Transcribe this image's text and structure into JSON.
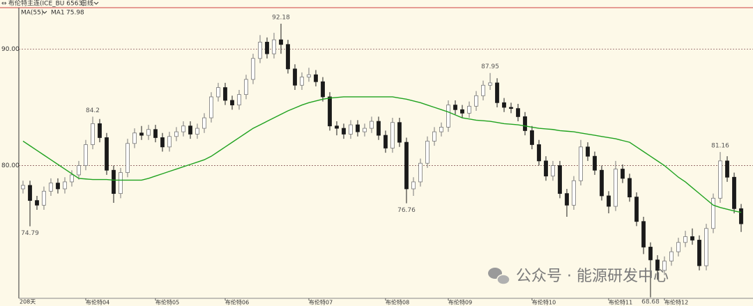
{
  "chart_data": {
    "type": "candlestick",
    "title": "布伦特主连(ICE_BU 6563)",
    "timeframe": "日线",
    "indicator": "MA(55)",
    "count_label": "208天",
    "watermark": "公众号 · 能源研发中心",
    "categories": [
      null,
      null,
      null,
      null,
      null,
      null,
      null,
      null,
      null,
      "布伦特04",
      null,
      null,
      null,
      null,
      null,
      null,
      null,
      null,
      null,
      "布伦特05",
      null,
      null,
      null,
      null,
      null,
      null,
      null,
      null,
      null,
      "布伦特06",
      null,
      null,
      null,
      null,
      null,
      null,
      null,
      null,
      null,
      null,
      null,
      "布伦特07",
      null,
      null,
      null,
      null,
      null,
      null,
      null,
      null,
      null,
      null,
      "布伦特08",
      null,
      null,
      null,
      null,
      null,
      null,
      null,
      null,
      "布伦特09",
      null,
      null,
      null,
      null,
      null,
      null,
      null,
      null,
      null,
      null,
      null,
      "布伦特10",
      null,
      null,
      null,
      null,
      null,
      null,
      null,
      null,
      null,
      null,
      "布伦特11",
      null,
      null,
      null,
      null,
      null,
      null,
      null,
      "布伦特12",
      null,
      null,
      null,
      null,
      null,
      null,
      null,
      null,
      null,
      null,
      null
    ],
    "open": [
      78.0,
      78.3,
      77.0,
      76.6,
      77.8,
      78.5,
      78.0,
      78.6,
      79.2,
      80.0,
      81.8,
      83.6,
      82.4,
      79.6,
      77.6,
      79.4,
      81.9,
      82.8,
      82.6,
      83.1,
      82.4,
      81.6,
      82.5,
      82.9,
      83.4,
      82.7,
      83.2,
      84.1,
      85.9,
      86.7,
      85.6,
      85.2,
      86.1,
      87.4,
      89.2,
      90.6,
      89.6,
      90.8,
      90.4,
      88.3,
      86.9,
      87.6,
      87.8,
      87.2,
      85.9,
      83.4,
      83.2,
      82.7,
      83.5,
      82.9,
      83.2,
      83.8,
      82.6,
      81.5,
      83.7,
      82.0,
      78.0,
      78.6,
      80.2,
      82.1,
      82.9,
      83.3,
      85.2,
      84.8,
      84.5,
      85.1,
      86.0,
      86.9,
      87.1,
      85.4,
      85.0,
      84.9,
      84.2,
      83.0,
      81.8,
      80.4,
      79.1,
      80.0,
      77.6,
      76.6,
      78.7,
      81.6,
      80.8,
      79.6,
      77.4,
      76.5,
      79.7,
      78.9,
      77.3,
      75.2,
      73.0,
      71.9,
      71.0,
      71.8,
      72.6,
      73.4,
      73.9,
      73.6,
      71.4,
      74.6,
      77.2,
      80.4,
      79.0,
      76.3
    ],
    "high": [
      78.7,
      78.7,
      77.4,
      78.2,
      78.9,
      78.9,
      79.0,
      79.6,
      80.4,
      82.2,
      84.2,
      84.0,
      82.8,
      80.0,
      79.8,
      82.3,
      83.2,
      83.4,
      83.5,
      83.5,
      82.8,
      82.9,
      83.3,
      83.8,
      83.8,
      83.6,
      84.5,
      86.3,
      87.1,
      87.1,
      86.0,
      86.5,
      87.8,
      89.6,
      91.2,
      91.0,
      91.4,
      92.18,
      90.8,
      88.7,
      88.0,
      88.4,
      88.2,
      87.6,
      86.3,
      83.8,
      83.6,
      83.9,
      83.9,
      83.6,
      84.2,
      84.2,
      83.0,
      84.1,
      84.1,
      82.4,
      79.0,
      80.6,
      82.5,
      83.3,
      83.7,
      85.6,
      85.6,
      85.2,
      85.5,
      86.4,
      87.3,
      87.95,
      87.5,
      85.8,
      85.4,
      85.3,
      84.6,
      83.4,
      82.2,
      80.8,
      80.4,
      80.4,
      78.0,
      79.1,
      82.2,
      82.0,
      81.2,
      80.0,
      77.8,
      80.4,
      80.1,
      79.3,
      77.7,
      75.6,
      73.4,
      72.3,
      72.2,
      73.0,
      73.8,
      74.4,
      74.6,
      74.0,
      75.0,
      77.6,
      81.16,
      80.8,
      79.4,
      76.7
    ],
    "low": [
      77.6,
      74.79,
      76.2,
      76.2,
      77.4,
      77.6,
      77.6,
      78.2,
      78.8,
      79.6,
      81.4,
      82.0,
      79.2,
      76.8,
      77.2,
      79.0,
      81.5,
      82.2,
      82.2,
      82.0,
      81.2,
      81.2,
      82.1,
      82.5,
      82.3,
      82.3,
      82.8,
      83.7,
      85.5,
      85.2,
      84.8,
      84.8,
      85.7,
      87.0,
      88.8,
      89.2,
      89.2,
      89.6,
      87.9,
      86.5,
      86.5,
      87.2,
      86.8,
      85.5,
      83.0,
      82.6,
      82.3,
      82.3,
      82.5,
      82.5,
      82.8,
      82.2,
      81.1,
      81.1,
      81.6,
      76.76,
      77.4,
      78.2,
      79.8,
      81.7,
      82.5,
      82.9,
      84.4,
      84.1,
      84.1,
      84.7,
      85.6,
      86.5,
      85.0,
      84.6,
      84.5,
      83.8,
      82.6,
      81.4,
      80.0,
      78.7,
      78.7,
      77.2,
      75.6,
      76.2,
      78.3,
      80.4,
      79.2,
      77.0,
      75.9,
      76.1,
      78.5,
      76.9,
      74.8,
      72.4,
      68.68,
      70.2,
      70.6,
      71.4,
      72.2,
      73.0,
      73.2,
      71.0,
      71.0,
      74.2,
      76.8,
      78.6,
      75.9,
      74.3
    ],
    "close": [
      78.3,
      77.0,
      76.6,
      77.8,
      78.5,
      78.0,
      78.6,
      79.2,
      80.0,
      81.8,
      83.6,
      82.4,
      79.6,
      77.6,
      79.4,
      81.9,
      82.8,
      82.6,
      83.1,
      82.4,
      81.6,
      82.5,
      82.9,
      83.4,
      82.7,
      83.2,
      84.1,
      85.9,
      86.7,
      85.6,
      85.2,
      86.1,
      87.4,
      89.2,
      90.6,
      89.6,
      90.8,
      90.4,
      88.3,
      86.9,
      87.6,
      87.8,
      87.2,
      85.9,
      83.4,
      83.2,
      82.7,
      83.5,
      82.9,
      83.2,
      83.8,
      82.6,
      81.5,
      83.7,
      82.0,
      78.0,
      78.6,
      80.2,
      82.1,
      82.9,
      83.3,
      85.2,
      84.8,
      84.5,
      85.1,
      86.0,
      86.9,
      87.1,
      85.4,
      85.0,
      84.9,
      84.2,
      83.0,
      81.8,
      80.4,
      79.1,
      80.0,
      77.6,
      76.6,
      78.7,
      81.6,
      80.8,
      79.6,
      77.4,
      76.5,
      79.7,
      78.9,
      77.3,
      75.2,
      73.0,
      71.9,
      71.0,
      71.8,
      72.6,
      73.4,
      73.9,
      73.6,
      71.4,
      74.6,
      77.2,
      80.4,
      79.0,
      76.3,
      75.0
    ],
    "series": [
      {
        "name": "MA1",
        "color": "#1fa21f",
        "values": [
          82.1,
          81.7,
          81.3,
          80.9,
          80.5,
          80.1,
          79.7,
          79.3,
          78.9,
          78.85,
          78.8,
          78.8,
          78.8,
          78.75,
          78.75,
          78.75,
          78.75,
          78.75,
          78.9,
          79.1,
          79.3,
          79.5,
          79.7,
          79.9,
          80.1,
          80.3,
          80.5,
          80.8,
          81.2,
          81.6,
          82.0,
          82.4,
          82.8,
          83.2,
          83.5,
          83.8,
          84.1,
          84.4,
          84.7,
          84.95,
          85.2,
          85.4,
          85.55,
          85.7,
          85.8,
          85.85,
          85.9,
          85.9,
          85.9,
          85.9,
          85.9,
          85.9,
          85.9,
          85.9,
          85.8,
          85.7,
          85.55,
          85.4,
          85.2,
          85.0,
          84.8,
          84.6,
          84.35,
          84.1,
          84.0,
          83.9,
          83.85,
          83.8,
          83.7,
          83.6,
          83.55,
          83.5,
          83.4,
          83.3,
          83.2,
          83.15,
          83.1,
          83.0,
          82.95,
          82.9,
          82.8,
          82.7,
          82.6,
          82.5,
          82.4,
          82.3,
          82.15,
          82.0,
          81.6,
          81.2,
          80.8,
          80.4,
          80.0,
          79.5,
          79.0,
          78.6,
          78.1,
          77.6,
          77.1,
          76.6,
          76.4,
          76.25,
          76.1,
          75.98
        ]
      }
    ],
    "up_color": "#ffffff",
    "down_color": "#1a1a1a",
    "ylim": [
      68.6,
      93.5
    ],
    "yticks": [
      {
        "value": 90,
        "label": "90.00"
      },
      {
        "value": 80,
        "label": "80.00"
      }
    ],
    "grid": true
  }
}
